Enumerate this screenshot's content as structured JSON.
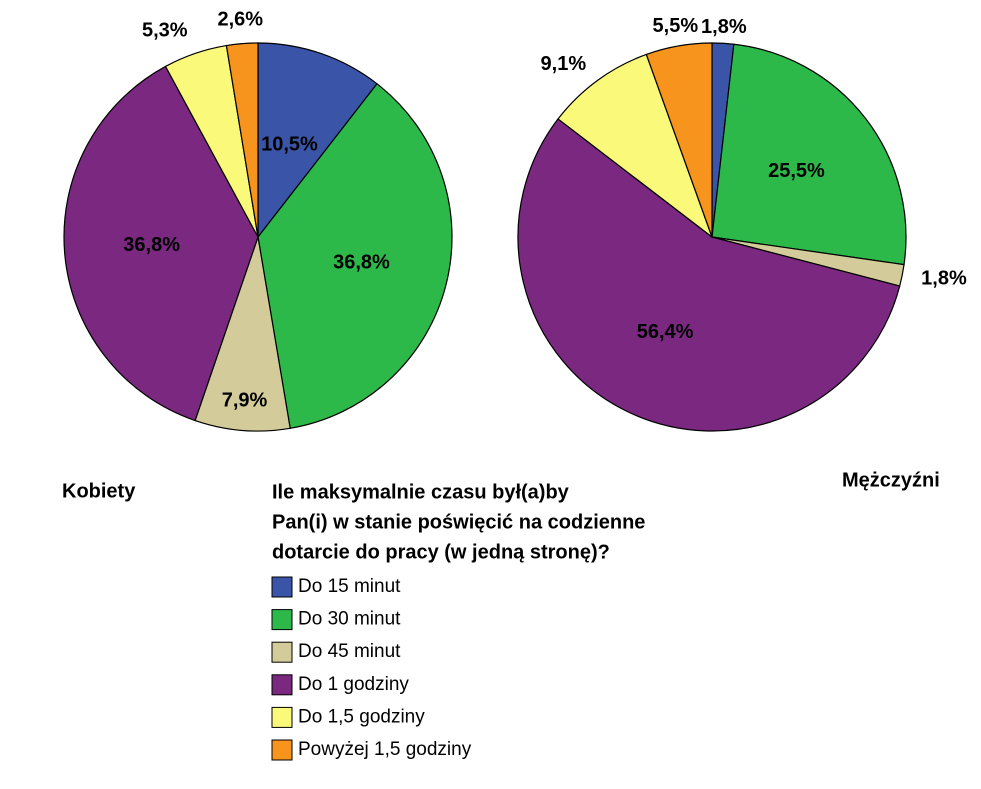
{
  "chart_data": [
    {
      "type": "pie",
      "title": "Kobiety",
      "values": [
        10.5,
        36.8,
        7.9,
        36.8,
        5.3,
        2.6
      ],
      "value_labels": [
        "10,5%",
        "36,8%",
        "7,9%",
        "36,8%",
        "5,3%",
        "2,6%"
      ]
    },
    {
      "type": "pie",
      "title": "Mężczyźni",
      "values": [
        1.8,
        25.5,
        1.8,
        56.4,
        9.1,
        5.5
      ],
      "value_labels": [
        "1,8%",
        "25,5%",
        "1,8%",
        "56,4%",
        "9,1%",
        "5,5%"
      ]
    }
  ],
  "legend": {
    "title_lines": [
      "Ile maksymalnie czasu był(a)by",
      "Pan(i) w stanie poświęcić na codzienne",
      "dotarcie do pracy (w jedną stronę)?"
    ],
    "labels": [
      "Do 15 minut",
      "Do 30 minut",
      "Do 45 minut",
      "Do 1 godziny",
      "Do 1,5 godziny",
      "Powyżej 1,5 godziny"
    ],
    "colors": [
      "#3a55a8",
      "#2db84a",
      "#d3cb9a",
      "#7a2880",
      "#fbf97a",
      "#f7941d"
    ]
  }
}
